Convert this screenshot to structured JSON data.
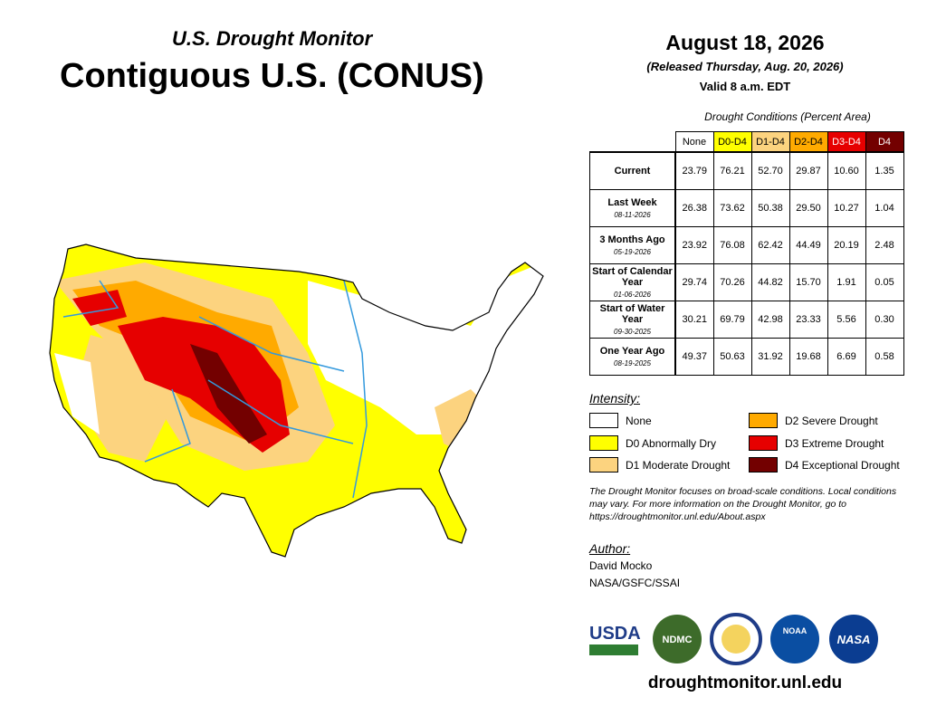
{
  "header": {
    "subtitle": "U.S. Drought Monitor",
    "title": "Contiguous U.S. (CONUS)"
  },
  "date": {
    "date": "August 18, 2026",
    "released": "(Released Thursday, Aug. 20, 2026)",
    "valid": "Valid 8 a.m. EDT"
  },
  "table": {
    "caption": "Drought Conditions (Percent Area)",
    "columns": [
      "None",
      "D0-D4",
      "D1-D4",
      "D2-D4",
      "D3-D4",
      "D4"
    ],
    "rows": [
      {
        "label": "Current",
        "date": null,
        "values": [
          "23.79",
          "76.21",
          "52.70",
          "29.87",
          "10.60",
          "1.35"
        ]
      },
      {
        "label": "Last Week",
        "date": "08-11-2026",
        "values": [
          "26.38",
          "73.62",
          "50.38",
          "29.50",
          "10.27",
          "1.04"
        ]
      },
      {
        "label": "3 Months Ago",
        "date": "05-19-2026",
        "values": [
          "23.92",
          "76.08",
          "62.42",
          "44.49",
          "20.19",
          "2.48"
        ]
      },
      {
        "label": "Start of Calendar Year",
        "date": "01-06-2026",
        "values": [
          "29.74",
          "70.26",
          "44.82",
          "15.70",
          "1.91",
          "0.05"
        ]
      },
      {
        "label": "Start of Water Year",
        "date": "09-30-2025",
        "values": [
          "30.21",
          "69.79",
          "42.98",
          "23.33",
          "5.56",
          "0.30"
        ]
      },
      {
        "label": "One Year Ago",
        "date": "08-19-2025",
        "values": [
          "49.37",
          "50.63",
          "31.92",
          "19.68",
          "6.69",
          "0.58"
        ]
      }
    ]
  },
  "legend": {
    "title": "Intensity:",
    "items": [
      {
        "label": "None",
        "color": "#ffffff"
      },
      {
        "label": "D0 Abnormally Dry",
        "color": "#ffff00"
      },
      {
        "label": "D1 Moderate Drought",
        "color": "#fcd37f"
      },
      {
        "label": "D2 Severe Drought",
        "color": "#ffaa00"
      },
      {
        "label": "D3 Extreme Drought",
        "color": "#e60000"
      },
      {
        "label": "D4 Exceptional Drought",
        "color": "#730000"
      }
    ]
  },
  "note": "The Drought Monitor focuses on broad-scale conditions. Local conditions may vary. For more information on the Drought Monitor, go to https://droughtmonitor.unl.edu/About.aspx",
  "author": {
    "title": "Author:",
    "lines": [
      "David Mocko",
      "NASA/GSFC/SSAI"
    ]
  },
  "logos": [
    "USDA",
    "NDMC",
    "NOAA",
    "NASA"
  ],
  "url": "droughtmonitor.unl.edu"
}
